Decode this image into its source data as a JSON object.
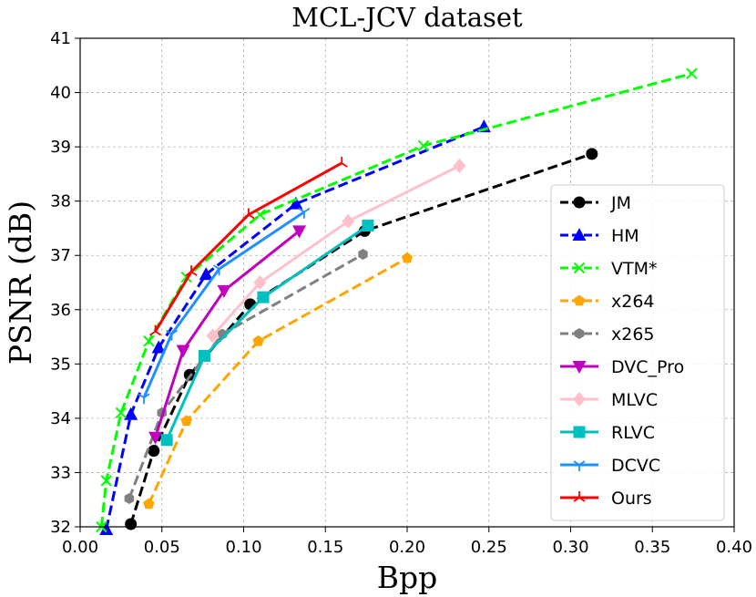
{
  "chart_data": {
    "type": "line",
    "title": "MCL-JCV dataset",
    "xlabel": "Bpp",
    "ylabel": "PSNR (dB)",
    "xlim": [
      0.0,
      0.4
    ],
    "ylim": [
      32,
      41
    ],
    "xticks": [
      0.0,
      0.05,
      0.1,
      0.15,
      0.2,
      0.25,
      0.3,
      0.35,
      0.4
    ],
    "xtick_labels": [
      "0.00",
      "0.05",
      "0.10",
      "0.15",
      "0.20",
      "0.25",
      "0.30",
      "0.35",
      "0.40"
    ],
    "yticks": [
      32,
      33,
      34,
      35,
      36,
      37,
      38,
      39,
      40,
      41
    ],
    "ytick_labels": [
      "32",
      "33",
      "34",
      "35",
      "36",
      "37",
      "38",
      "39",
      "40",
      "41"
    ],
    "grid": true,
    "legend_position": "right",
    "series": [
      {
        "name": "JM",
        "color": "#000000",
        "dash": "dashed",
        "marker": "circle",
        "x": [
          0.031,
          0.045,
          0.067,
          0.104,
          0.174,
          0.313
        ],
        "y": [
          32.05,
          33.4,
          34.8,
          36.1,
          37.45,
          38.87
        ]
      },
      {
        "name": "HM",
        "color": "#0000ff",
        "dash": "dashed",
        "marker": "triangle-up",
        "x": [
          0.016,
          0.031,
          0.048,
          0.077,
          0.132,
          0.247
        ],
        "y": [
          31.95,
          34.07,
          35.3,
          36.65,
          37.95,
          39.37
        ]
      },
      {
        "name": "VTM*",
        "color": "#00ff00",
        "dash": "dashed",
        "marker": "x",
        "x": [
          0.013,
          0.016,
          0.025,
          0.042,
          0.065,
          0.11,
          0.21,
          0.374
        ],
        "y": [
          32.0,
          32.85,
          34.1,
          35.42,
          36.6,
          37.75,
          39.02,
          40.35
        ]
      },
      {
        "name": "x264",
        "color": "#ffa500",
        "dash": "dashed",
        "marker": "pentagon",
        "x": [
          0.042,
          0.065,
          0.109,
          0.2
        ],
        "y": [
          32.42,
          33.95,
          35.42,
          36.95
        ]
      },
      {
        "name": "x265",
        "color": "#808080",
        "dash": "dashed",
        "marker": "hexagon",
        "x": [
          0.03,
          0.05,
          0.087,
          0.173
        ],
        "y": [
          32.52,
          34.1,
          35.55,
          37.02
        ]
      },
      {
        "name": "DVC_Pro",
        "color": "#bf00bf",
        "dash": "solid",
        "marker": "triangle-down",
        "x": [
          0.046,
          0.063,
          0.088,
          0.134
        ],
        "y": [
          33.65,
          35.25,
          36.35,
          37.45
        ]
      },
      {
        "name": "MLVC",
        "color": "#ffc0cb",
        "dash": "solid",
        "marker": "diamond",
        "x": [
          0.081,
          0.11,
          0.164,
          0.232
        ],
        "y": [
          35.52,
          36.5,
          37.63,
          38.65
        ]
      },
      {
        "name": "RLVC",
        "color": "#00bfbf",
        "dash": "solid",
        "marker": "square",
        "x": [
          0.053,
          0.076,
          0.112,
          0.176
        ],
        "y": [
          33.6,
          35.15,
          36.23,
          37.55
        ]
      },
      {
        "name": "DCVC",
        "color": "#1e90ff",
        "dash": "solid",
        "marker": "tri-down",
        "x": [
          0.039,
          0.056,
          0.085,
          0.137
        ],
        "y": [
          34.38,
          35.55,
          36.75,
          37.8
        ]
      },
      {
        "name": "Ours",
        "color": "#ff0000",
        "dash": "solid",
        "marker": "tri-up",
        "x": [
          0.046,
          0.068,
          0.103,
          0.16
        ],
        "y": [
          35.6,
          36.7,
          37.75,
          38.7
        ]
      }
    ]
  }
}
